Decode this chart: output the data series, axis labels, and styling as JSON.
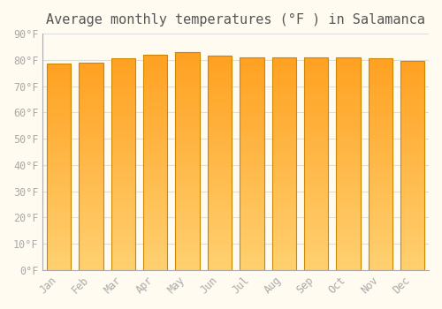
{
  "title": "Average monthly temperatures (°F ) in Salamanca",
  "months": [
    "Jan",
    "Feb",
    "Mar",
    "Apr",
    "May",
    "Jun",
    "Jul",
    "Aug",
    "Sep",
    "Oct",
    "Nov",
    "Dec"
  ],
  "values": [
    78.5,
    79.0,
    80.5,
    82.0,
    83.0,
    81.5,
    81.0,
    81.0,
    81.0,
    81.0,
    80.5,
    79.5
  ],
  "bar_color_bottom": "#FFD070",
  "bar_color_top": "#FFA020",
  "bar_edge_color": "#CC8800",
  "background_color": "#FFFBF0",
  "grid_color": "#DDDDDD",
  "tick_color": "#AAAAAA",
  "title_color": "#555555",
  "ylim": [
    0,
    90
  ],
  "yticks": [
    0,
    10,
    20,
    30,
    40,
    50,
    60,
    70,
    80,
    90
  ],
  "ytick_labels": [
    "0°F",
    "10°F",
    "20°F",
    "30°F",
    "40°F",
    "50°F",
    "60°F",
    "70°F",
    "80°F",
    "90°F"
  ],
  "title_fontsize": 11,
  "tick_fontsize": 8.5
}
